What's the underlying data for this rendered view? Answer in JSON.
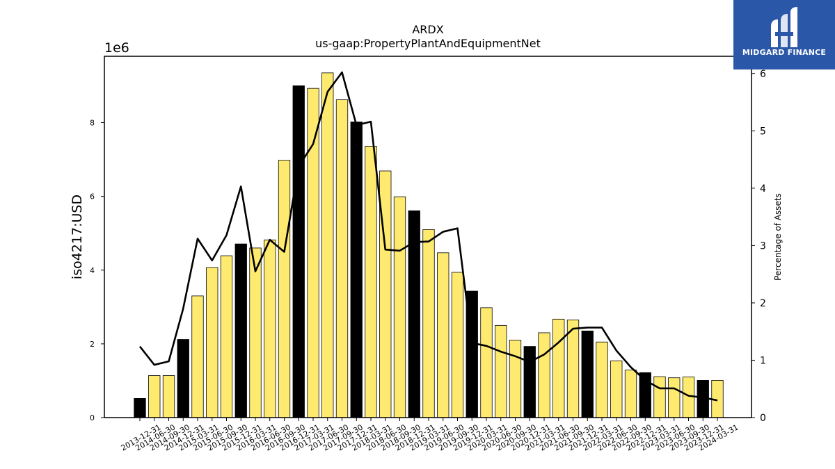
{
  "logo": {
    "brand_text": "MIDGARD FINANCE"
  },
  "chart_data": {
    "type": "bar",
    "title": "ARDX",
    "subtitle": "us-gaap:PropertyPlantAndEquipmentNet",
    "ylabel": "iso4217:USD",
    "y_offset_label": "1e6",
    "y2label": "Percentage of Assets",
    "ylim": [
      0,
      9800000
    ],
    "y2lim": [
      0,
      6.3
    ],
    "yticks": [
      0,
      2000000,
      4000000,
      6000000,
      8000000
    ],
    "ytick_labels": [
      "0",
      "2",
      "4",
      "6",
      "8"
    ],
    "y2ticks": [
      0,
      1,
      2,
      3,
      4,
      5,
      6
    ],
    "bar_color": "#ffea70",
    "annual_bar_color": "#000000",
    "line_color": "#000000",
    "categories": [
      "2013-12-31",
      "2014-06-30",
      "2014-09-30",
      "2014-12-31",
      "2015-03-31",
      "2015-06-30",
      "2015-09-30",
      "2015-12-31",
      "2016-03-31",
      "2016-06-30",
      "2016-09-30",
      "2016-12-31",
      "2017-03-31",
      "2017-06-30",
      "2017-09-30",
      "2017-12-31",
      "2018-03-31",
      "2018-06-30",
      "2018-09-30",
      "2018-12-31",
      "2019-03-31",
      "2019-06-30",
      "2019-09-30",
      "2019-12-31",
      "2020-03-31",
      "2020-06-30",
      "2020-09-30",
      "2020-12-31",
      "2021-03-31",
      "2021-06-30",
      "2021-09-30",
      "2021-12-31",
      "2022-03-31",
      "2022-06-30",
      "2022-09-30",
      "2022-12-31",
      "2023-03-31",
      "2023-06-30",
      "2023-09-30",
      "2023-12-31",
      "2024-03-31"
    ],
    "series": [
      {
        "values": [
          520000,
          1140000,
          1140000,
          2120000,
          3300000,
          4070000,
          4390000,
          4710000,
          4600000,
          4820000,
          6980000,
          9000000,
          8930000,
          9350000,
          8620000,
          8020000,
          7360000,
          6690000,
          5990000,
          5610000,
          5100000,
          4470000,
          3940000,
          3430000,
          2980000,
          2500000,
          2100000,
          1930000,
          2300000,
          2670000,
          2650000,
          2350000,
          2050000,
          1540000,
          1290000,
          1220000,
          1110000,
          1080000,
          1100000,
          1010000,
          1010000
        ],
        "annual": [
          true,
          false,
          false,
          true,
          false,
          false,
          false,
          true,
          false,
          false,
          false,
          true,
          false,
          false,
          false,
          true,
          false,
          false,
          false,
          true,
          false,
          false,
          false,
          true,
          false,
          false,
          false,
          true,
          false,
          false,
          false,
          true,
          false,
          false,
          false,
          true,
          false,
          false,
          false,
          true,
          false
        ]
      },
      {
        "name": "Percentage of Assets",
        "values": [
          1.24,
          0.92,
          0.98,
          1.9,
          3.12,
          2.74,
          3.18,
          4.03,
          2.55,
          3.1,
          2.89,
          4.38,
          4.77,
          5.68,
          6.02,
          5.1,
          5.16,
          2.93,
          2.91,
          3.06,
          3.07,
          3.24,
          3.3,
          1.3,
          1.25,
          1.15,
          1.07,
          0.97,
          1.1,
          1.31,
          1.55,
          1.57,
          1.57,
          1.17,
          0.88,
          0.65,
          0.51,
          0.51,
          0.38,
          0.35,
          0.3
        ]
      }
    ]
  }
}
